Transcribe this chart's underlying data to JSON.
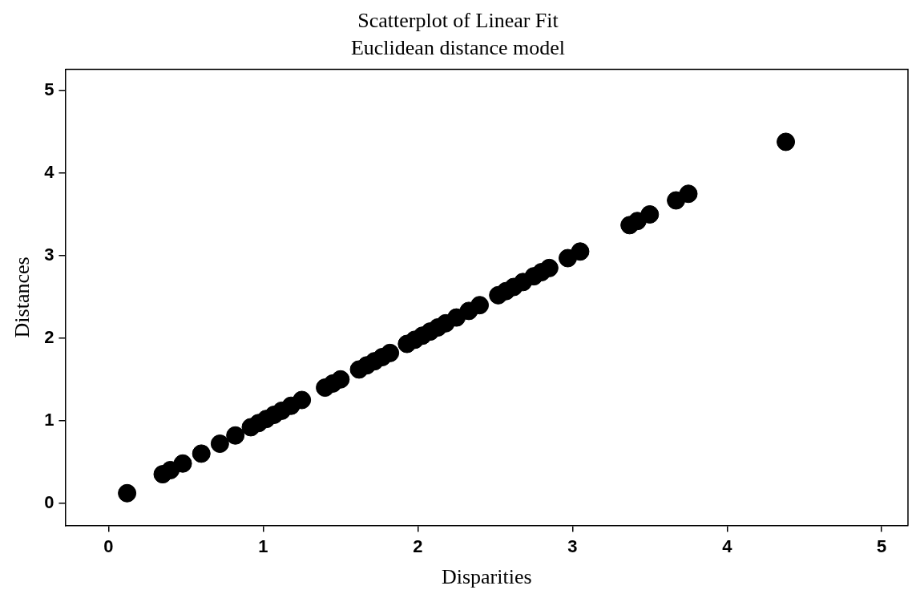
{
  "chart_data": {
    "type": "scatter",
    "title": "Scatterplot of Linear Fit",
    "subtitle": "Euclidean distance model",
    "xlabel": "Disparities",
    "ylabel": "Distances",
    "xlim": [
      -0.28,
      5.17
    ],
    "ylim": [
      -0.27,
      5.26
    ],
    "xticks": [
      0,
      1,
      2,
      3,
      4,
      5
    ],
    "yticks": [
      0,
      1,
      2,
      3,
      4,
      5
    ],
    "grid": false,
    "legend": false,
    "marker": "circle",
    "series": [
      {
        "color": "#000000",
        "x": [
          0.12,
          0.35,
          0.4,
          0.48,
          0.6,
          0.72,
          0.82,
          0.92,
          0.97,
          1.02,
          1.07,
          1.12,
          1.18,
          1.25,
          1.4,
          1.45,
          1.5,
          1.62,
          1.67,
          1.72,
          1.77,
          1.82,
          1.93,
          1.98,
          2.03,
          2.08,
          2.13,
          2.18,
          2.25,
          2.33,
          2.4,
          2.52,
          2.57,
          2.62,
          2.68,
          2.75,
          2.8,
          2.85,
          2.97,
          3.05,
          3.37,
          3.42,
          3.5,
          3.67,
          3.75,
          4.38
        ],
        "values": [
          0.12,
          0.35,
          0.4,
          0.48,
          0.6,
          0.72,
          0.82,
          0.92,
          0.97,
          1.02,
          1.07,
          1.12,
          1.18,
          1.25,
          1.4,
          1.45,
          1.5,
          1.62,
          1.67,
          1.72,
          1.77,
          1.82,
          1.93,
          1.98,
          2.03,
          2.08,
          2.13,
          2.18,
          2.25,
          2.33,
          2.4,
          2.52,
          2.57,
          2.62,
          2.68,
          2.75,
          2.8,
          2.85,
          2.97,
          3.05,
          3.37,
          3.42,
          3.5,
          3.67,
          3.75,
          4.38
        ]
      }
    ]
  }
}
